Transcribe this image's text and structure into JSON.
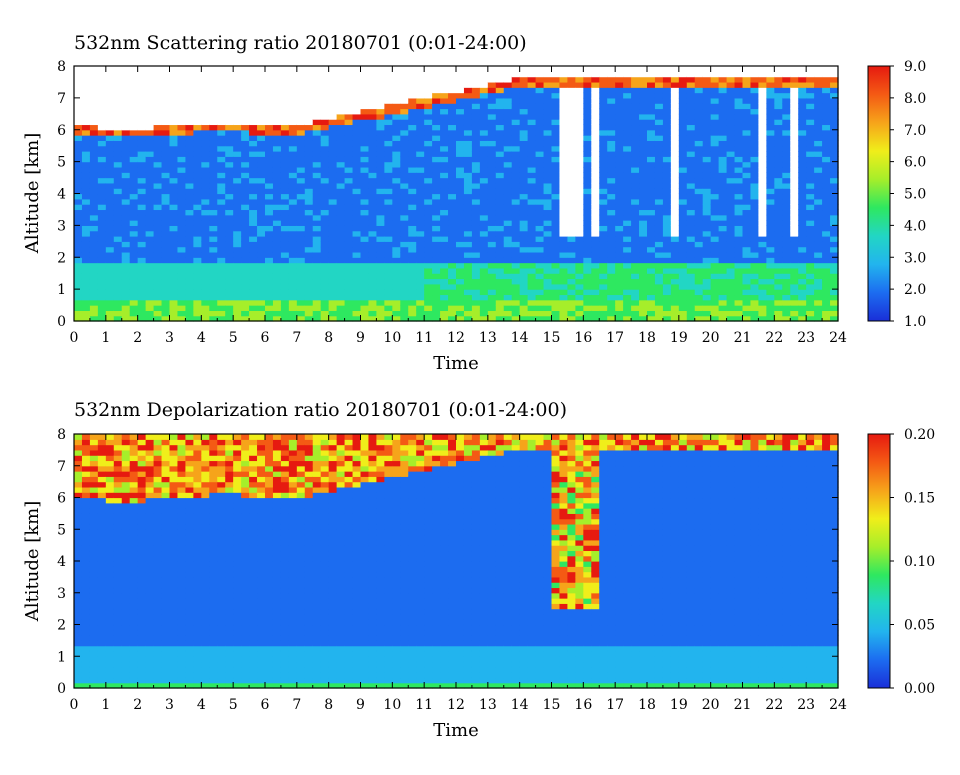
{
  "chart_data": [
    {
      "type": "heatmap",
      "title": "532nm Scattering ratio  20180701 (0:01-24:00)",
      "xlabel": "Time",
      "ylabel": "Altitude [km]",
      "xlim": [
        0,
        24
      ],
      "ylim": [
        0,
        8
      ],
      "xticks": [
        "0",
        "1",
        "2",
        "3",
        "4",
        "5",
        "6",
        "7",
        "8",
        "9",
        "10",
        "11",
        "12",
        "13",
        "14",
        "15",
        "16",
        "17",
        "18",
        "19",
        "20",
        "21",
        "22",
        "23",
        "24"
      ],
      "yticks": [
        "0",
        "1",
        "2",
        "3",
        "4",
        "5",
        "6",
        "7",
        "8"
      ],
      "colorbar": {
        "range": [
          1.0,
          9.0
        ],
        "ticks": [
          "1.0",
          "2.0",
          "3.0",
          "4.0",
          "5.0",
          "6.0",
          "7.0",
          "8.0",
          "9.0"
        ],
        "colormap": [
          "#1a2fd8",
          "#1c6cf0",
          "#22b4ee",
          "#22d6c4",
          "#2ee860",
          "#a6ee2a",
          "#f0ee1a",
          "#f6a41a",
          "#f45a14",
          "#e61a10"
        ]
      },
      "features": {
        "boundary_layer_top_km": 0.6,
        "cloud_base_km_early": 6.0,
        "cloud_base_km_late": 7.5,
        "gap_color": "#ffffff"
      }
    },
    {
      "type": "heatmap",
      "title": "532nm Depolarization ratio  20180701 (0:01-24:00)",
      "xlabel": "Time",
      "ylabel": "Altitude [km]",
      "xlim": [
        0,
        24
      ],
      "ylim": [
        0,
        8
      ],
      "xticks": [
        "0",
        "1",
        "2",
        "3",
        "4",
        "5",
        "6",
        "7",
        "8",
        "9",
        "10",
        "11",
        "12",
        "13",
        "14",
        "15",
        "16",
        "17",
        "18",
        "19",
        "20",
        "21",
        "22",
        "23",
        "24"
      ],
      "yticks": [
        "0",
        "1",
        "2",
        "3",
        "4",
        "5",
        "6",
        "7",
        "8"
      ],
      "colorbar": {
        "range": [
          0.0,
          0.2
        ],
        "ticks": [
          "0.00",
          "0.05",
          "0.10",
          "0.15",
          "0.20"
        ],
        "colormap": [
          "#1a2fd8",
          "#1c6cf0",
          "#22b4ee",
          "#22d6c4",
          "#2ee860",
          "#a6ee2a",
          "#f0ee1a",
          "#f6a41a",
          "#f45a14",
          "#e61a10"
        ]
      }
    }
  ]
}
